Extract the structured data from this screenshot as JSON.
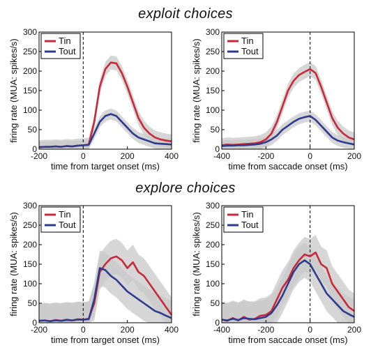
{
  "sections": [
    {
      "title": "exploit choices"
    },
    {
      "title": "explore choices"
    }
  ],
  "colors": {
    "tin": "#c8283a",
    "tout": "#2e3a8e",
    "band": "#c8c8c8"
  },
  "chart_data": [
    {
      "type": "line",
      "xlabel": "time from target onset (ms)",
      "ylabel": "firing rate (MUA: spikes/s)",
      "xlim": [
        -200,
        400
      ],
      "ylim": [
        0,
        300
      ],
      "xticks": [
        -200,
        0,
        200,
        400
      ],
      "yticks": [
        0,
        50,
        100,
        150,
        200,
        250,
        300
      ],
      "event_line_x": 0,
      "legend": "top-left",
      "x": [
        -200,
        -175,
        -150,
        -125,
        -100,
        -75,
        -50,
        -25,
        0,
        25,
        50,
        75,
        100,
        125,
        150,
        175,
        200,
        225,
        250,
        275,
        300,
        325,
        350,
        375,
        400
      ],
      "series": [
        {
          "name": "Tin",
          "values": [
            5,
            6,
            6,
            7,
            6,
            8,
            7,
            9,
            10,
            12,
            70,
            160,
            205,
            222,
            220,
            195,
            160,
            120,
            80,
            55,
            40,
            30,
            25,
            22,
            20
          ],
          "band": 18
        },
        {
          "name": "Tout",
          "values": [
            5,
            6,
            6,
            7,
            6,
            8,
            7,
            9,
            10,
            11,
            40,
            70,
            85,
            90,
            85,
            70,
            55,
            40,
            30,
            25,
            20,
            15,
            14,
            13,
            12
          ],
          "band": 14
        }
      ]
    },
    {
      "type": "line",
      "xlabel": "time from saccade onset (ms)",
      "ylabel": "firing rate (MUA: spikes/s)",
      "xlim": [
        -400,
        200
      ],
      "ylim": [
        0,
        300
      ],
      "xticks": [
        -400,
        -200,
        0,
        200
      ],
      "yticks": [
        0,
        50,
        100,
        150,
        200,
        250,
        300
      ],
      "event_line_x": 0,
      "legend": "top-left",
      "x": [
        -400,
        -375,
        -350,
        -325,
        -300,
        -275,
        -250,
        -225,
        -200,
        -175,
        -150,
        -125,
        -100,
        -75,
        -50,
        -25,
        0,
        25,
        50,
        75,
        100,
        125,
        150,
        175,
        200
      ],
      "series": [
        {
          "name": "Tin",
          "values": [
            10,
            12,
            11,
            12,
            13,
            14,
            15,
            18,
            25,
            40,
            70,
            110,
            150,
            175,
            190,
            198,
            205,
            195,
            160,
            120,
            80,
            55,
            40,
            30,
            25
          ],
          "band": 18
        },
        {
          "name": "Tout",
          "values": [
            8,
            9,
            9,
            10,
            10,
            11,
            12,
            14,
            18,
            25,
            35,
            50,
            60,
            70,
            78,
            82,
            85,
            75,
            60,
            45,
            30,
            22,
            18,
            15,
            12
          ],
          "band": 14
        }
      ]
    },
    {
      "type": "line",
      "xlabel": "time from target onset (ms)",
      "ylabel": "firing rate (MUA: spikes/s)",
      "xlim": [
        -200,
        400
      ],
      "ylim": [
        0,
        300
      ],
      "xticks": [
        -200,
        0,
        200,
        400
      ],
      "yticks": [
        0,
        50,
        100,
        150,
        200,
        250,
        300
      ],
      "event_line_x": 0,
      "legend": "top-left",
      "x": [
        -200,
        -175,
        -150,
        -125,
        -100,
        -75,
        -50,
        -25,
        0,
        25,
        50,
        75,
        100,
        125,
        150,
        175,
        200,
        225,
        250,
        275,
        300,
        325,
        350,
        375,
        400
      ],
      "series": [
        {
          "name": "Tin",
          "values": [
            5,
            6,
            4,
            7,
            5,
            8,
            6,
            9,
            8,
            10,
            50,
            130,
            150,
            165,
            170,
            160,
            140,
            155,
            130,
            120,
            100,
            80,
            60,
            40,
            20
          ],
          "band": 45
        },
        {
          "name": "Tout",
          "values": [
            5,
            6,
            4,
            6,
            5,
            7,
            6,
            8,
            8,
            9,
            60,
            140,
            135,
            120,
            110,
            95,
            80,
            70,
            60,
            50,
            40,
            30,
            25,
            18,
            12
          ],
          "band": 45
        }
      ]
    },
    {
      "type": "line",
      "xlabel": "time from saccade onset (ms)",
      "ylabel": "firing rate (MUA: spikes/s)",
      "xlim": [
        -400,
        200
      ],
      "ylim": [
        0,
        300
      ],
      "xticks": [
        -400,
        -200,
        0,
        200
      ],
      "yticks": [
        0,
        50,
        100,
        150,
        200,
        250,
        300
      ],
      "event_line_x": 0,
      "legend": "top-left",
      "x": [
        -400,
        -375,
        -350,
        -325,
        -300,
        -275,
        -250,
        -225,
        -200,
        -175,
        -150,
        -125,
        -100,
        -75,
        -50,
        -25,
        0,
        25,
        50,
        75,
        100,
        125,
        150,
        175,
        200
      ],
      "series": [
        {
          "name": "Tin",
          "values": [
            8,
            5,
            12,
            6,
            15,
            8,
            10,
            18,
            20,
            30,
            60,
            90,
            110,
            140,
            160,
            175,
            170,
            180,
            150,
            140,
            100,
            80,
            60,
            40,
            30
          ],
          "band": 45
        },
        {
          "name": "Tout",
          "values": [
            8,
            6,
            10,
            7,
            12,
            10,
            9,
            12,
            15,
            25,
            45,
            70,
            100,
            130,
            150,
            160,
            150,
            125,
            100,
            75,
            60,
            45,
            30,
            22,
            15
          ],
          "band": 45
        }
      ]
    }
  ]
}
